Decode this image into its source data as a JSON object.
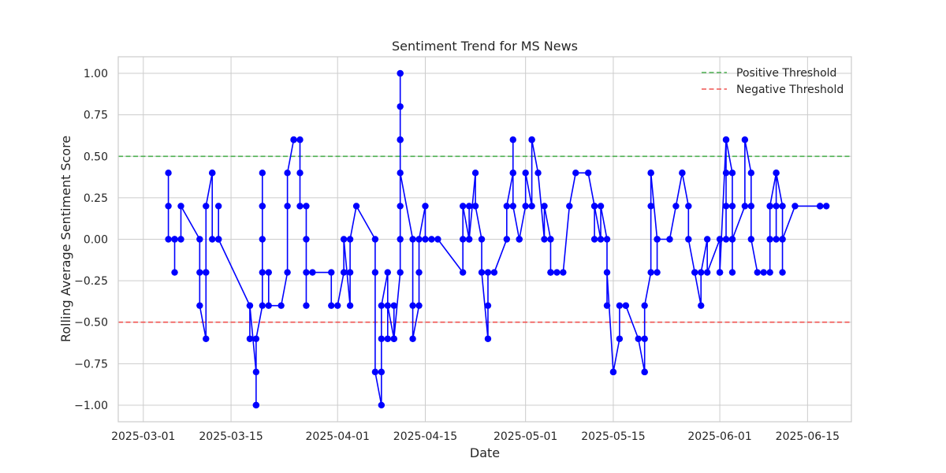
{
  "chart_data": {
    "type": "line",
    "title": "Sentiment Trend for MS News",
    "xlabel": "Date",
    "ylabel": "Rolling Average Sentiment Score",
    "x_axis": "date",
    "xlim": [
      "2025-02-25",
      "2025-06-22"
    ],
    "ylim": [
      -1.1,
      1.1
    ],
    "x_ticks": [
      "2025-03-01",
      "2025-03-15",
      "2025-04-01",
      "2025-04-15",
      "2025-05-01",
      "2025-05-15",
      "2025-06-01",
      "2025-06-15"
    ],
    "y_ticks": [
      1.0,
      0.75,
      0.5,
      0.25,
      0.0,
      -0.25,
      -0.5,
      -0.75,
      -1.0
    ],
    "y_tick_labels": [
      "1.00",
      "0.75",
      "0.50",
      "0.25",
      "0.00",
      "−0.25",
      "−0.50",
      "−0.75",
      "−1.00"
    ],
    "grid": true,
    "legend_position": "top-right",
    "series": [
      {
        "name": "",
        "color": "#0000ff",
        "marker": "circle",
        "points": [
          [
            "2025-03-05",
            0.4
          ],
          [
            "2025-03-05",
            0.2
          ],
          [
            "2025-03-05",
            0.0
          ],
          [
            "2025-03-06",
            0.0
          ],
          [
            "2025-03-06",
            -0.2
          ],
          [
            "2025-03-06",
            0.0
          ],
          [
            "2025-03-07",
            0.0
          ],
          [
            "2025-03-07",
            0.2
          ],
          [
            "2025-03-10",
            0.0
          ],
          [
            "2025-03-10",
            -0.2
          ],
          [
            "2025-03-10",
            -0.4
          ],
          [
            "2025-03-11",
            -0.6
          ],
          [
            "2025-03-11",
            -0.2
          ],
          [
            "2025-03-11",
            -0.2
          ],
          [
            "2025-03-11",
            0.2
          ],
          [
            "2025-03-12",
            0.4
          ],
          [
            "2025-03-12",
            0.4
          ],
          [
            "2025-03-12",
            0.0
          ],
          [
            "2025-03-13",
            0.0
          ],
          [
            "2025-03-13",
            0.2
          ],
          [
            "2025-03-13",
            0.0
          ],
          [
            "2025-03-18",
            -0.4
          ],
          [
            "2025-03-18",
            -0.6
          ],
          [
            "2025-03-18",
            -0.4
          ],
          [
            "2025-03-19",
            -0.8
          ],
          [
            "2025-03-19",
            -1.0
          ],
          [
            "2025-03-19",
            -1.0
          ],
          [
            "2025-03-19",
            -0.6
          ],
          [
            "2025-03-20",
            -0.4
          ],
          [
            "2025-03-20",
            0.0
          ],
          [
            "2025-03-20",
            0.2
          ],
          [
            "2025-03-20",
            0.4
          ],
          [
            "2025-03-20",
            0.2
          ],
          [
            "2025-03-20",
            -0.2
          ],
          [
            "2025-03-21",
            -0.2
          ],
          [
            "2025-03-21",
            -0.4
          ],
          [
            "2025-03-23",
            -0.4
          ],
          [
            "2025-03-24",
            -0.2
          ],
          [
            "2025-03-24",
            0.2
          ],
          [
            "2025-03-24",
            0.4
          ],
          [
            "2025-03-25",
            0.6
          ],
          [
            "2025-03-25",
            0.6
          ],
          [
            "2025-03-26",
            0.6
          ],
          [
            "2025-03-26",
            0.4
          ],
          [
            "2025-03-26",
            0.2
          ],
          [
            "2025-03-27",
            0.2
          ],
          [
            "2025-03-27",
            0.0
          ],
          [
            "2025-03-27",
            -0.4
          ],
          [
            "2025-03-27",
            -0.2
          ],
          [
            "2025-03-28",
            -0.2
          ],
          [
            "2025-03-31",
            -0.2
          ],
          [
            "2025-03-31",
            -0.4
          ],
          [
            "2025-04-01",
            -0.4
          ],
          [
            "2025-04-02",
            -0.2
          ],
          [
            "2025-04-02",
            0.0
          ],
          [
            "2025-04-03",
            -0.4
          ],
          [
            "2025-04-03",
            -0.2
          ],
          [
            "2025-04-03",
            0.0
          ],
          [
            "2025-04-04",
            0.2
          ],
          [
            "2025-04-07",
            0.0
          ],
          [
            "2025-04-07",
            -0.2
          ],
          [
            "2025-04-07",
            -0.8
          ],
          [
            "2025-04-08",
            -1.0
          ],
          [
            "2025-04-08",
            -0.6
          ],
          [
            "2025-04-08",
            -0.8
          ],
          [
            "2025-04-08",
            -0.4
          ],
          [
            "2025-04-09",
            -0.2
          ],
          [
            "2025-04-09",
            -0.6
          ],
          [
            "2025-04-09",
            -0.4
          ],
          [
            "2025-04-10",
            -0.6
          ],
          [
            "2025-04-10",
            -0.4
          ],
          [
            "2025-04-10",
            -0.6
          ],
          [
            "2025-04-11",
            -0.2
          ],
          [
            "2025-04-11",
            0.0
          ],
          [
            "2025-04-11",
            0.6
          ],
          [
            "2025-04-11",
            1.0
          ],
          [
            "2025-04-11",
            1.0
          ],
          [
            "2025-04-11",
            0.8
          ],
          [
            "2025-04-11",
            0.2
          ],
          [
            "2025-04-11",
            0.6
          ],
          [
            "2025-04-11",
            0.4
          ],
          [
            "2025-04-13",
            0.0
          ],
          [
            "2025-04-13",
            -0.4
          ],
          [
            "2025-04-13",
            -0.6
          ],
          [
            "2025-04-14",
            -0.4
          ],
          [
            "2025-04-14",
            -0.2
          ],
          [
            "2025-04-14",
            0.0
          ],
          [
            "2025-04-15",
            0.2
          ],
          [
            "2025-04-15",
            0.0
          ],
          [
            "2025-04-16",
            0.0
          ],
          [
            "2025-04-17",
            0.0
          ],
          [
            "2025-04-21",
            -0.2
          ],
          [
            "2025-04-21",
            0.0
          ],
          [
            "2025-04-21",
            0.2
          ],
          [
            "2025-04-22",
            0.0
          ],
          [
            "2025-04-22",
            0.2
          ],
          [
            "2025-04-22",
            0.0
          ],
          [
            "2025-04-23",
            0.4
          ],
          [
            "2025-04-23",
            0.2
          ],
          [
            "2025-04-24",
            0.0
          ],
          [
            "2025-04-24",
            -0.2
          ],
          [
            "2025-04-25",
            -0.6
          ],
          [
            "2025-04-25",
            -0.4
          ],
          [
            "2025-04-25",
            -0.2
          ],
          [
            "2025-04-26",
            -0.2
          ],
          [
            "2025-04-28",
            0.0
          ],
          [
            "2025-04-28",
            0.2
          ],
          [
            "2025-04-29",
            0.4
          ],
          [
            "2025-04-29",
            0.6
          ],
          [
            "2025-04-29",
            0.4
          ],
          [
            "2025-04-29",
            0.2
          ],
          [
            "2025-04-30",
            0.0
          ],
          [
            "2025-04-30",
            0.0
          ],
          [
            "2025-05-01",
            0.2
          ],
          [
            "2025-05-01",
            0.4
          ],
          [
            "2025-05-02",
            0.2
          ],
          [
            "2025-05-02",
            0.6
          ],
          [
            "2025-05-02",
            0.6
          ],
          [
            "2025-05-03",
            0.4
          ],
          [
            "2025-05-04",
            0.0
          ],
          [
            "2025-05-04",
            0.2
          ],
          [
            "2025-05-05",
            0.0
          ],
          [
            "2025-05-05",
            -0.2
          ],
          [
            "2025-05-05",
            -0.2
          ],
          [
            "2025-05-06",
            -0.2
          ],
          [
            "2025-05-07",
            -0.2
          ],
          [
            "2025-05-08",
            0.2
          ],
          [
            "2025-05-09",
            0.4
          ],
          [
            "2025-05-11",
            0.4
          ],
          [
            "2025-05-12",
            0.2
          ],
          [
            "2025-05-12",
            0.0
          ],
          [
            "2025-05-12",
            0.2
          ],
          [
            "2025-05-13",
            0.0
          ],
          [
            "2025-05-13",
            0.2
          ],
          [
            "2025-05-14",
            0.0
          ],
          [
            "2025-05-14",
            -0.4
          ],
          [
            "2025-05-14",
            -0.2
          ],
          [
            "2025-05-15",
            -0.8
          ],
          [
            "2025-05-15",
            -0.8
          ],
          [
            "2025-05-16",
            -0.6
          ],
          [
            "2025-05-16",
            -0.4
          ],
          [
            "2025-05-17",
            -0.4
          ],
          [
            "2025-05-17",
            -0.4
          ],
          [
            "2025-05-19",
            -0.6
          ],
          [
            "2025-05-20",
            -0.8
          ],
          [
            "2025-05-20",
            -0.6
          ],
          [
            "2025-05-20",
            -0.8
          ],
          [
            "2025-05-20",
            -0.4
          ],
          [
            "2025-05-21",
            -0.2
          ],
          [
            "2025-05-21",
            0.2
          ],
          [
            "2025-05-21",
            0.4
          ],
          [
            "2025-05-21",
            0.4
          ],
          [
            "2025-05-22",
            0.0
          ],
          [
            "2025-05-22",
            -0.2
          ],
          [
            "2025-05-22",
            0.0
          ],
          [
            "2025-05-24",
            0.0
          ],
          [
            "2025-05-25",
            0.2
          ],
          [
            "2025-05-26",
            0.4
          ],
          [
            "2025-05-26",
            0.4
          ],
          [
            "2025-05-27",
            0.2
          ],
          [
            "2025-05-27",
            0.0
          ],
          [
            "2025-05-28",
            -0.2
          ],
          [
            "2025-05-28",
            -0.2
          ],
          [
            "2025-05-29",
            -0.4
          ],
          [
            "2025-05-29",
            -0.2
          ],
          [
            "2025-05-30",
            0.0
          ],
          [
            "2025-05-30",
            -0.2
          ],
          [
            "2025-06-01",
            0.0
          ],
          [
            "2025-06-01",
            -0.2
          ],
          [
            "2025-06-01",
            -0.2
          ],
          [
            "2025-06-02",
            0.6
          ],
          [
            "2025-06-02",
            0.4
          ],
          [
            "2025-06-02",
            0.2
          ],
          [
            "2025-06-02",
            0.0
          ],
          [
            "2025-06-02",
            0.6
          ],
          [
            "2025-06-03",
            0.4
          ],
          [
            "2025-06-03",
            -0.2
          ],
          [
            "2025-06-03",
            0.0
          ],
          [
            "2025-06-03",
            0.2
          ],
          [
            "2025-06-03",
            0.0
          ],
          [
            "2025-06-05",
            0.2
          ],
          [
            "2025-06-05",
            0.6
          ],
          [
            "2025-06-06",
            0.4
          ],
          [
            "2025-06-06",
            0.2
          ],
          [
            "2025-06-06",
            0.0
          ],
          [
            "2025-06-07",
            -0.2
          ],
          [
            "2025-06-08",
            -0.2
          ],
          [
            "2025-06-09",
            -0.2
          ],
          [
            "2025-06-09",
            0.2
          ],
          [
            "2025-06-09",
            0.0
          ],
          [
            "2025-06-09",
            0.2
          ],
          [
            "2025-06-10",
            0.4
          ],
          [
            "2025-06-10",
            0.2
          ],
          [
            "2025-06-10",
            0.0
          ],
          [
            "2025-06-10",
            0.4
          ],
          [
            "2025-06-11",
            0.2
          ],
          [
            "2025-06-11",
            0.0
          ],
          [
            "2025-06-11",
            -0.2
          ],
          [
            "2025-06-11",
            0.0
          ],
          [
            "2025-06-13",
            0.2
          ],
          [
            "2025-06-17",
            0.2
          ],
          [
            "2025-06-17",
            0.2
          ],
          [
            "2025-06-18",
            0.2
          ]
        ]
      }
    ],
    "reference_lines": [
      {
        "name": "Positive Threshold",
        "y": 0.5,
        "color": "#4caf50",
        "style": "dashed"
      },
      {
        "name": "Negative Threshold",
        "y": -0.5,
        "color": "#ef5350",
        "style": "dashed"
      }
    ]
  }
}
